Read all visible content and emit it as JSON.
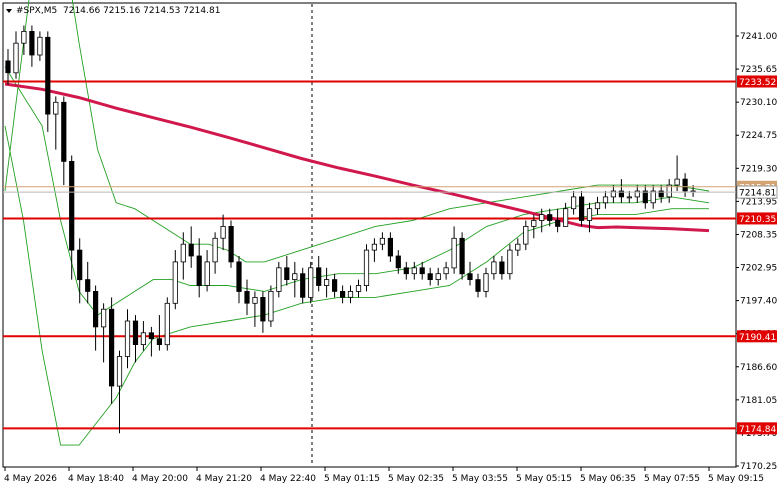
{
  "chart_data": {
    "type": "candlestick",
    "symbol_label": "#SPX,M5",
    "ohlc_label": "7214.66 7215.16 7214.53 7214.81",
    "y_ticks": [
      "7241.00",
      "7235.65",
      "7230.10",
      "7224.75",
      "7219.30",
      "7213.95",
      "7208.35",
      "7202.95",
      "7197.40",
      "7192.00",
      "7186.60",
      "7181.05",
      "7175.70",
      "7170.25"
    ],
    "ylim": [
      7168.3,
      7246.8
    ],
    "x_ticks": [
      "4 May 2026",
      "4 May 18:40",
      "4 May 20:00",
      "4 May 21:20",
      "4 May 22:40",
      "5 May 01:15",
      "5 May 02:35",
      "5 May 03:55",
      "5 May 05:15",
      "5 May 06:35",
      "5 May 07:55",
      "5 May 09:15"
    ],
    "levels": [
      {
        "label": "7233.52",
        "value": 7233.52
      },
      {
        "label": "7210.35",
        "value": 7210.35
      },
      {
        "label": "7190.41",
        "value": 7190.41
      },
      {
        "label": "7174.84",
        "value": 7174.84
      }
    ],
    "current_price": {
      "label": "7214.81",
      "value": 7214.81
    },
    "ask_price": {
      "label": "7215.71",
      "value": 7215.71
    },
    "ma_series": [
      [
        0,
        7233.1
      ],
      [
        10,
        7232.2
      ],
      [
        20,
        7230.8
      ],
      [
        30,
        7229.0
      ],
      [
        40,
        7227.4
      ],
      [
        50,
        7225.8
      ],
      [
        60,
        7224.1
      ],
      [
        70,
        7222.3
      ],
      [
        80,
        7220.5
      ],
      [
        90,
        7218.9
      ],
      [
        100,
        7217.5
      ],
      [
        110,
        7216.0
      ],
      [
        120,
        7214.6
      ],
      [
        130,
        7213.1
      ],
      [
        140,
        7211.6
      ],
      [
        150,
        7210.0
      ],
      [
        155,
        7209.2
      ],
      [
        160,
        7208.8
      ],
      [
        165,
        7208.9
      ],
      [
        170,
        7208.8
      ],
      [
        180,
        7208.6
      ],
      [
        190,
        7208.3
      ]
    ],
    "bb_upper": [
      [
        0,
        7215
      ],
      [
        5,
        7240
      ],
      [
        10,
        7265
      ],
      [
        15,
        7260
      ],
      [
        20,
        7240
      ],
      [
        25,
        7222
      ],
      [
        30,
        7213
      ],
      [
        35,
        7212
      ],
      [
        40,
        7210
      ],
      [
        45,
        7208
      ],
      [
        50,
        7206
      ],
      [
        55,
        7206
      ],
      [
        60,
        7205
      ],
      [
        65,
        7203
      ],
      [
        70,
        7203
      ],
      [
        80,
        7205
      ],
      [
        90,
        7207
      ],
      [
        100,
        7209
      ],
      [
        110,
        7210
      ],
      [
        120,
        7212
      ],
      [
        130,
        7213
      ],
      [
        140,
        7214
      ],
      [
        150,
        7215
      ],
      [
        160,
        7216
      ],
      [
        170,
        7216
      ],
      [
        180,
        7216
      ],
      [
        190,
        7215
      ]
    ],
    "bb_middle": [
      [
        0,
        7236
      ],
      [
        10,
        7226
      ],
      [
        15,
        7210
      ],
      [
        20,
        7198
      ],
      [
        25,
        7194
      ],
      [
        30,
        7196
      ],
      [
        35,
        7198
      ],
      [
        40,
        7200
      ],
      [
        45,
        7200
      ],
      [
        50,
        7199
      ],
      [
        60,
        7199
      ],
      [
        70,
        7198
      ],
      [
        80,
        7200
      ],
      [
        90,
        7201
      ],
      [
        100,
        7201
      ],
      [
        110,
        7202
      ],
      [
        120,
        7205
      ],
      [
        130,
        7209
      ],
      [
        140,
        7211
      ],
      [
        150,
        7212
      ],
      [
        160,
        7213
      ],
      [
        170,
        7213
      ],
      [
        180,
        7214
      ],
      [
        190,
        7213
      ]
    ],
    "bb_lower": [
      [
        0,
        7226
      ],
      [
        5,
        7210
      ],
      [
        10,
        7188
      ],
      [
        15,
        7172
      ],
      [
        20,
        7172
      ],
      [
        25,
        7176
      ],
      [
        30,
        7180
      ],
      [
        35,
        7186
      ],
      [
        40,
        7190
      ],
      [
        45,
        7191
      ],
      [
        50,
        7192
      ],
      [
        60,
        7193
      ],
      [
        70,
        7194
      ],
      [
        80,
        7196
      ],
      [
        90,
        7197
      ],
      [
        100,
        7197
      ],
      [
        110,
        7198
      ],
      [
        120,
        7199
      ],
      [
        130,
        7203
      ],
      [
        140,
        7208
      ],
      [
        150,
        7210
      ],
      [
        160,
        7211
      ],
      [
        170,
        7211
      ],
      [
        180,
        7212
      ],
      [
        190,
        7212
      ]
    ],
    "candles": [
      [
        0,
        7237,
        7239,
        7233,
        7235
      ],
      [
        1,
        7235,
        7242,
        7234,
        7240
      ],
      [
        2,
        7240,
        7243,
        7238,
        7242
      ],
      [
        3,
        7242,
        7243,
        7236,
        7238
      ],
      [
        4,
        7238,
        7242,
        7237,
        7241
      ],
      [
        5,
        7241,
        7242,
        7225,
        7228
      ],
      [
        6,
        7228,
        7231,
        7222,
        7230
      ],
      [
        7,
        7230,
        7231,
        7216,
        7220
      ],
      [
        8,
        7220,
        7221,
        7200,
        7205
      ],
      [
        9,
        7205,
        7207,
        7196,
        7200
      ],
      [
        10,
        7200,
        7203,
        7196,
        7198
      ],
      [
        11,
        7198,
        7199,
        7188,
        7192
      ],
      [
        12,
        7192,
        7196,
        7186,
        7195
      ],
      [
        13,
        7195,
        7197,
        7179,
        7182
      ],
      [
        14,
        7182,
        7188,
        7174,
        7187
      ],
      [
        15,
        7187,
        7195,
        7185,
        7193
      ],
      [
        16,
        7193,
        7194,
        7186,
        7189
      ],
      [
        17,
        7189,
        7193,
        7188,
        7191
      ],
      [
        18,
        7191,
        7192,
        7187,
        7190
      ],
      [
        19,
        7190,
        7194,
        7188,
        7189
      ],
      [
        20,
        7189,
        7197,
        7188,
        7196
      ],
      [
        21,
        7196,
        7205,
        7195,
        7203
      ],
      [
        22,
        7203,
        7208,
        7200,
        7206
      ],
      [
        23,
        7206,
        7209,
        7202,
        7204
      ],
      [
        24,
        7204,
        7207,
        7197,
        7199
      ],
      [
        25,
        7199,
        7205,
        7198,
        7203
      ],
      [
        26,
        7203,
        7208,
        7201,
        7207
      ],
      [
        27,
        7207,
        7211,
        7205,
        7209
      ],
      [
        28,
        7209,
        7210,
        7202,
        7203
      ],
      [
        29,
        7203,
        7204,
        7196,
        7198
      ],
      [
        30,
        7198,
        7200,
        7194,
        7196
      ],
      [
        31,
        7196,
        7198,
        7192,
        7197
      ],
      [
        32,
        7197,
        7198,
        7191,
        7193
      ],
      [
        33,
        7193,
        7199,
        7192,
        7198
      ],
      [
        34,
        7198,
        7203,
        7197,
        7202
      ],
      [
        35,
        7202,
        7204,
        7199,
        7200
      ],
      [
        36,
        7200,
        7203,
        7197,
        7201
      ],
      [
        37,
        7201,
        7202,
        7196,
        7197
      ],
      [
        38,
        7197,
        7203,
        7196,
        7202
      ],
      [
        39,
        7202,
        7204,
        7198,
        7199
      ],
      [
        40,
        7199,
        7202,
        7197,
        7200
      ],
      [
        41,
        7200,
        7201,
        7197,
        7198
      ],
      [
        42,
        7198,
        7199,
        7196,
        7197
      ],
      [
        43,
        7197,
        7199,
        7196,
        7198
      ],
      [
        44,
        7198,
        7200,
        7197,
        7199
      ],
      [
        45,
        7199,
        7206,
        7198,
        7205
      ],
      [
        46,
        7205,
        7207,
        7203,
        7206
      ],
      [
        47,
        7206,
        7208,
        7205,
        7207
      ],
      [
        48,
        7207,
        7208,
        7203,
        7204
      ],
      [
        49,
        7204,
        7205,
        7201,
        7202
      ],
      [
        50,
        7202,
        7203,
        7200,
        7201
      ],
      [
        51,
        7201,
        7203,
        7200,
        7202
      ],
      [
        52,
        7202,
        7203,
        7200,
        7201
      ],
      [
        53,
        7201,
        7202,
        7199,
        7200
      ],
      [
        54,
        7200,
        7202,
        7199,
        7201
      ],
      [
        55,
        7201,
        7203,
        7200,
        7202
      ],
      [
        56,
        7202,
        7209,
        7201,
        7207
      ],
      [
        57,
        7207,
        7208,
        7200,
        7201
      ],
      [
        58,
        7201,
        7203,
        7199,
        7200
      ],
      [
        59,
        7200,
        7201,
        7197,
        7198
      ],
      [
        60,
        7198,
        7202,
        7197,
        7201
      ],
      [
        61,
        7201,
        7204,
        7200,
        7203
      ],
      [
        62,
        7203,
        7204,
        7200,
        7201
      ],
      [
        63,
        7201,
        7206,
        7200,
        7205
      ],
      [
        64,
        7205,
        7207,
        7204,
        7206
      ],
      [
        65,
        7206,
        7210,
        7205,
        7209
      ],
      [
        66,
        7209,
        7211,
        7207,
        7210
      ],
      [
        67,
        7210,
        7212,
        7208,
        7211
      ],
      [
        68,
        7211,
        7212,
        7209,
        7210
      ],
      [
        69,
        7210,
        7212,
        7208,
        7209
      ],
      [
        70,
        7209,
        7213,
        7209,
        7212
      ],
      [
        71,
        7212,
        7215,
        7211,
        7214
      ],
      [
        72,
        7214,
        7215,
        7209,
        7210
      ],
      [
        73,
        7210,
        7213,
        7208,
        7212
      ],
      [
        74,
        7212,
        7214,
        7211,
        7213
      ],
      [
        75,
        7213,
        7215,
        7212,
        7214
      ],
      [
        76,
        7214,
        7216,
        7213,
        7215
      ],
      [
        77,
        7215,
        7217,
        7213,
        7214
      ],
      [
        78,
        7214,
        7215,
        7213,
        7214
      ],
      [
        79,
        7214,
        7216,
        7213,
        7215
      ],
      [
        80,
        7215,
        7216,
        7212,
        7213
      ],
      [
        81,
        7213,
        7216,
        7212,
        7215
      ],
      [
        82,
        7215,
        7216,
        7213,
        7214
      ],
      [
        83,
        7214,
        7217,
        7213,
        7216
      ],
      [
        84,
        7216,
        7221,
        7215,
        7217
      ],
      [
        85,
        7217,
        7218,
        7214,
        7215
      ],
      [
        86,
        7215,
        7216,
        7214,
        7215
      ]
    ]
  }
}
